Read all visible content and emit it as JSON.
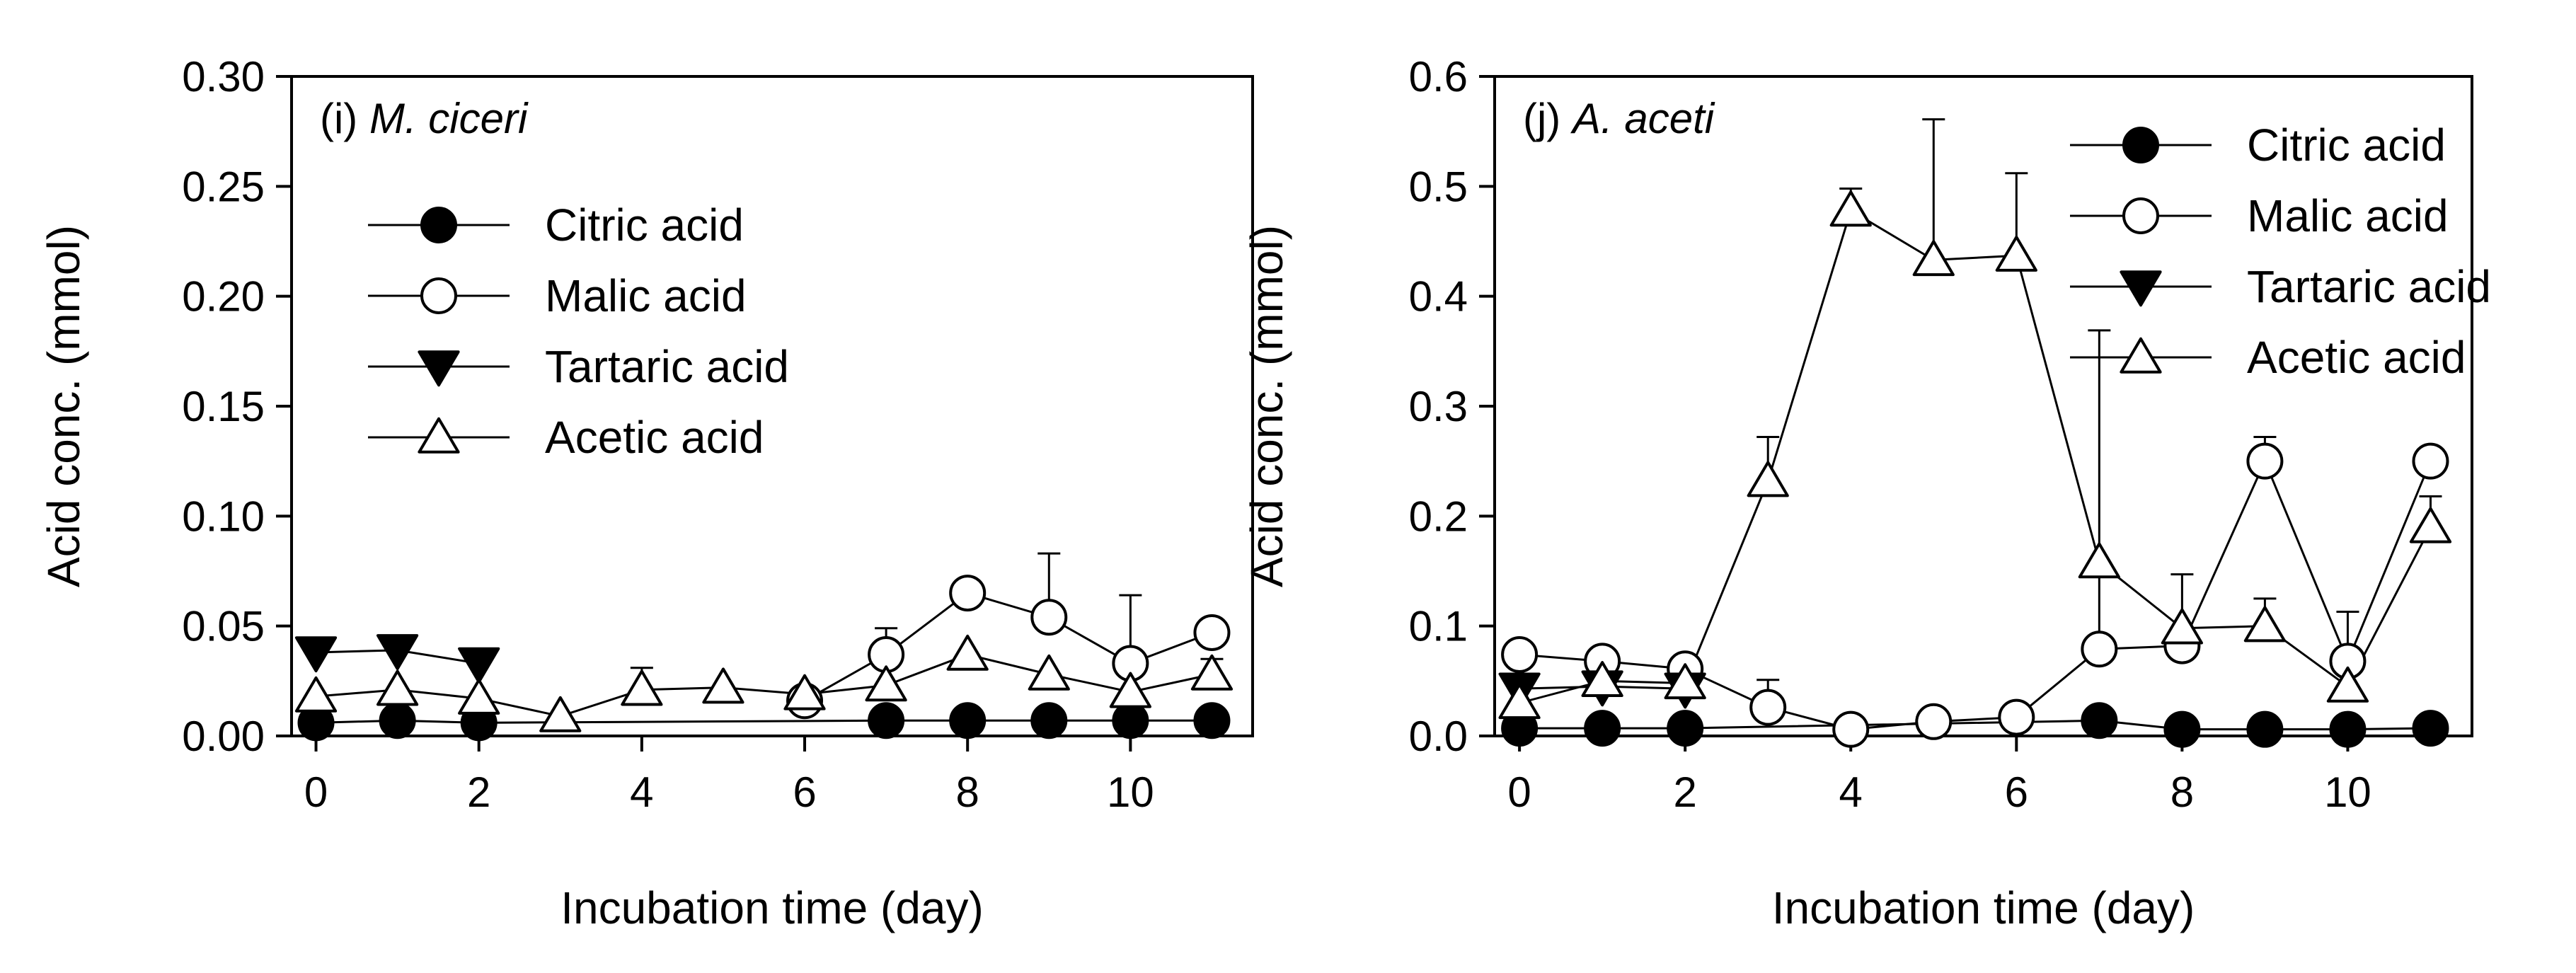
{
  "chart_data": [
    {
      "type": "line",
      "panel": "i",
      "panel_prefix": "(i) ",
      "title": "M. ciceri",
      "xlabel": "Incubation time (day)",
      "ylabel": "Acid conc. (mmol)",
      "xlim": [
        -0.3,
        11.5
      ],
      "ylim": [
        0,
        0.3
      ],
      "xticks": [
        0,
        2,
        4,
        6,
        8,
        10
      ],
      "xtick_labels": [
        "0",
        "2",
        "4",
        "6",
        "8",
        "10"
      ],
      "yticks": [
        0,
        0.05,
        0.1,
        0.15,
        0.2,
        0.25,
        0.3
      ],
      "ytick_labels": [
        "0.00",
        "0.05",
        "0.10",
        "0.15",
        "0.20",
        "0.25",
        "0.30"
      ],
      "legend_position": "upper-left",
      "series": [
        {
          "name": "Citric acid",
          "marker": "circle-filled",
          "points": [
            [
              0,
              0.006
            ],
            [
              1,
              0.007
            ],
            [
              2,
              0.006
            ],
            [
              7,
              0.007
            ],
            [
              8,
              0.007
            ],
            [
              9,
              0.007
            ],
            [
              10,
              0.007
            ],
            [
              11,
              0.007
            ]
          ],
          "errors": [
            0,
            0,
            0,
            0,
            0,
            0,
            0,
            0
          ]
        },
        {
          "name": "Malic acid",
          "marker": "circle-open",
          "points": [
            [
              6,
              0.016
            ],
            [
              7,
              0.037
            ],
            [
              8,
              0.065
            ],
            [
              9,
              0.054
            ],
            [
              10,
              0.033
            ],
            [
              11,
              0.047
            ]
          ],
          "errors": [
            0,
            0.012,
            0,
            0.029,
            0.031,
            0
          ]
        },
        {
          "name": "Tartaric acid",
          "marker": "triangle-down-filled",
          "points": [
            [
              0,
              0.038
            ],
            [
              1,
              0.039
            ],
            [
              2,
              0.033
            ]
          ],
          "errors": [
            0,
            0,
            0
          ]
        },
        {
          "name": "Acetic acid",
          "marker": "triangle-up-open",
          "points": [
            [
              0,
              0.018
            ],
            [
              1,
              0.021
            ],
            [
              2,
              0.017
            ],
            [
              3,
              0.009
            ],
            [
              4,
              0.021
            ],
            [
              5,
              0.022
            ],
            [
              6,
              0.019
            ],
            [
              7,
              0.023
            ],
            [
              8,
              0.037
            ],
            [
              9,
              0.028
            ],
            [
              10,
              0.02
            ],
            [
              11,
              0.028
            ]
          ],
          "errors": [
            0,
            0,
            0,
            0,
            0.01,
            0,
            0,
            0,
            0,
            0,
            0,
            0.007
          ]
        }
      ]
    },
    {
      "type": "line",
      "panel": "j",
      "panel_prefix": "(j) ",
      "title": "A. aceti",
      "xlabel": "Incubation time (day)",
      "ylabel": "Acid conc. (mmol)",
      "xlim": [
        -0.3,
        11.5
      ],
      "ylim": [
        0,
        0.6
      ],
      "xticks": [
        0,
        2,
        4,
        6,
        8,
        10
      ],
      "xtick_labels": [
        "0",
        "2",
        "4",
        "6",
        "8",
        "10"
      ],
      "yticks": [
        0,
        0.1,
        0.2,
        0.3,
        0.4,
        0.5,
        0.6
      ],
      "ytick_labels": [
        "0.0",
        "0.1",
        "0.2",
        "0.3",
        "0.4",
        "0.5",
        "0.6"
      ],
      "legend_position": "upper-right",
      "series": [
        {
          "name": "Citric acid",
          "marker": "circle-filled",
          "points": [
            [
              0,
              0.007
            ],
            [
              1,
              0.007
            ],
            [
              2,
              0.007
            ],
            [
              7,
              0.014
            ],
            [
              8,
              0.006
            ],
            [
              9,
              0.006
            ],
            [
              10,
              0.006
            ],
            [
              11,
              0.007
            ]
          ],
          "errors": [
            0,
            0,
            0,
            0,
            0,
            0,
            0,
            0
          ]
        },
        {
          "name": "Malic acid",
          "marker": "circle-open",
          "points": [
            [
              0,
              0.074
            ],
            [
              1,
              0.068
            ],
            [
              2,
              0.061
            ],
            [
              3,
              0.026
            ],
            [
              4,
              0.006
            ],
            [
              5,
              0.013
            ],
            [
              6,
              0.017
            ],
            [
              7,
              0.079
            ],
            [
              8,
              0.082
            ],
            [
              9,
              0.25
            ],
            [
              10,
              0.068
            ],
            [
              11,
              0.25
            ]
          ],
          "errors": [
            0,
            0,
            0,
            0.025,
            0,
            0,
            0,
            0.29,
            0.065,
            0.022,
            0.045,
            0
          ]
        },
        {
          "name": "Tartaric acid",
          "marker": "triangle-down-filled",
          "points": [
            [
              0,
              0.043
            ],
            [
              1,
              0.045
            ],
            [
              2,
              0.043
            ]
          ],
          "errors": [
            0,
            0,
            0
          ]
        },
        {
          "name": "Acetic acid",
          "marker": "triangle-up-open",
          "points": [
            [
              0,
              0.03
            ],
            [
              1,
              0.05
            ],
            [
              2,
              0.048
            ],
            [
              3,
              0.232
            ],
            [
              4,
              0.478
            ],
            [
              5,
              0.433
            ],
            [
              6,
              0.437
            ],
            [
              7,
              0.158
            ],
            [
              8,
              0.098
            ],
            [
              9,
              0.1
            ],
            [
              10,
              0.045
            ],
            [
              11,
              0.19
            ]
          ],
          "errors": [
            0,
            0,
            0,
            0.04,
            0.02,
            0.128,
            0.075,
            0,
            0,
            0.025,
            0,
            0.028
          ]
        }
      ]
    }
  ]
}
